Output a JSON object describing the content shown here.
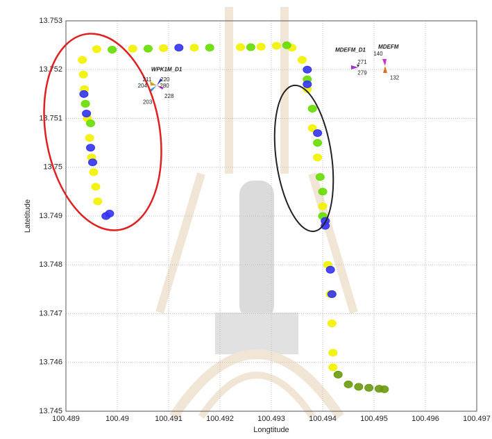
{
  "chart_data": {
    "type": "scatter",
    "x_label": "Longtitude",
    "y_label": "Latetitude",
    "xlim": [
      100.489,
      100.497
    ],
    "xticks": [
      100.489,
      100.49,
      100.491,
      100.492,
      100.493,
      100.494,
      100.495,
      100.496,
      100.497
    ],
    "ylim": [
      13.745,
      13.753
    ],
    "yticks": [
      13.745,
      13.746,
      13.747,
      13.748,
      13.749,
      13.75,
      13.751,
      13.752,
      13.753
    ],
    "grid": true,
    "series": [
      {
        "color": "#f2f200",
        "x": [
          100.48932,
          100.48934,
          100.48936,
          100.48942,
          100.48946,
          100.4895,
          100.48954,
          100.48958,
          100.48962,
          100.4896,
          100.4903,
          100.4909,
          100.4915,
          100.4924,
          100.4928,
          100.4931,
          100.4934,
          100.4936,
          100.4937,
          100.4938,
          100.4939,
          100.494,
          100.4941,
          100.49415,
          100.49418,
          100.4942,
          100.4942
        ],
        "values": [
          13.7522,
          13.7519,
          13.7516,
          13.751,
          13.7506,
          13.7502,
          13.7499,
          13.7496,
          13.7493,
          13.75242,
          13.75243,
          13.75244,
          13.75245,
          13.75246,
          13.75247,
          13.75249,
          13.75245,
          13.7522,
          13.7516,
          13.7508,
          13.7502,
          13.7492,
          13.748,
          13.7474,
          13.7468,
          13.7462,
          13.7459
        ]
      },
      {
        "color": "#66dd00",
        "x": [
          100.4899,
          100.4906,
          100.4918,
          100.4926,
          100.4933,
          100.4937,
          100.4938,
          100.4939,
          100.49395,
          100.494,
          100.494,
          100.48938,
          100.48948
        ],
        "values": [
          13.75241,
          13.75243,
          13.75245,
          13.75246,
          13.7525,
          13.7518,
          13.7512,
          13.7505,
          13.7498,
          13.7495,
          13.749,
          13.7513,
          13.7509
        ]
      },
      {
        "color": "#3333ee",
        "x": [
          100.48935,
          100.4894,
          100.48948,
          100.48952,
          100.48978,
          100.48985,
          100.4912,
          100.4937,
          100.4937,
          100.4939,
          100.49405,
          100.49405,
          100.49415,
          100.49418
        ],
        "values": [
          13.7515,
          13.7511,
          13.7504,
          13.7501,
          13.749,
          13.74905,
          13.75245,
          13.752,
          13.7517,
          13.7507,
          13.7489,
          13.7488,
          13.7479,
          13.7474
        ]
      },
      {
        "color": "#6a9a10",
        "x": [
          100.4943,
          100.4945,
          100.4947,
          100.4949,
          100.4951,
          100.4952
        ],
        "values": [
          13.74575,
          13.74555,
          13.7455,
          13.74548,
          13.74546,
          13.74545
        ]
      }
    ],
    "annotations": [
      {
        "text": "WPK1M_D1",
        "x": 100.49096,
        "y": 13.752
      },
      {
        "text": "211",
        "x": 100.49058,
        "y": 13.75179
      },
      {
        "text": "220",
        "x": 100.49093,
        "y": 13.75179
      },
      {
        "text": "204",
        "x": 100.49049,
        "y": 13.75166
      },
      {
        "text": "280",
        "x": 100.49092,
        "y": 13.75166
      },
      {
        "text": "203",
        "x": 100.49059,
        "y": 13.75133
      },
      {
        "text": "228",
        "x": 100.49101,
        "y": 13.75145
      },
      {
        "text": "MDEFM_D1",
        "x": 100.49454,
        "y": 13.7524
      },
      {
        "text": "271",
        "x": 100.49477,
        "y": 13.75215
      },
      {
        "text": "279",
        "x": 100.49477,
        "y": 13.75193
      },
      {
        "text": "MDEFM",
        "x": 100.49528,
        "y": 13.75246
      },
      {
        "text": "140",
        "x": 100.49508,
        "y": 13.75232
      },
      {
        "text": "132",
        "x": 100.4954,
        "y": 13.75183
      }
    ]
  }
}
